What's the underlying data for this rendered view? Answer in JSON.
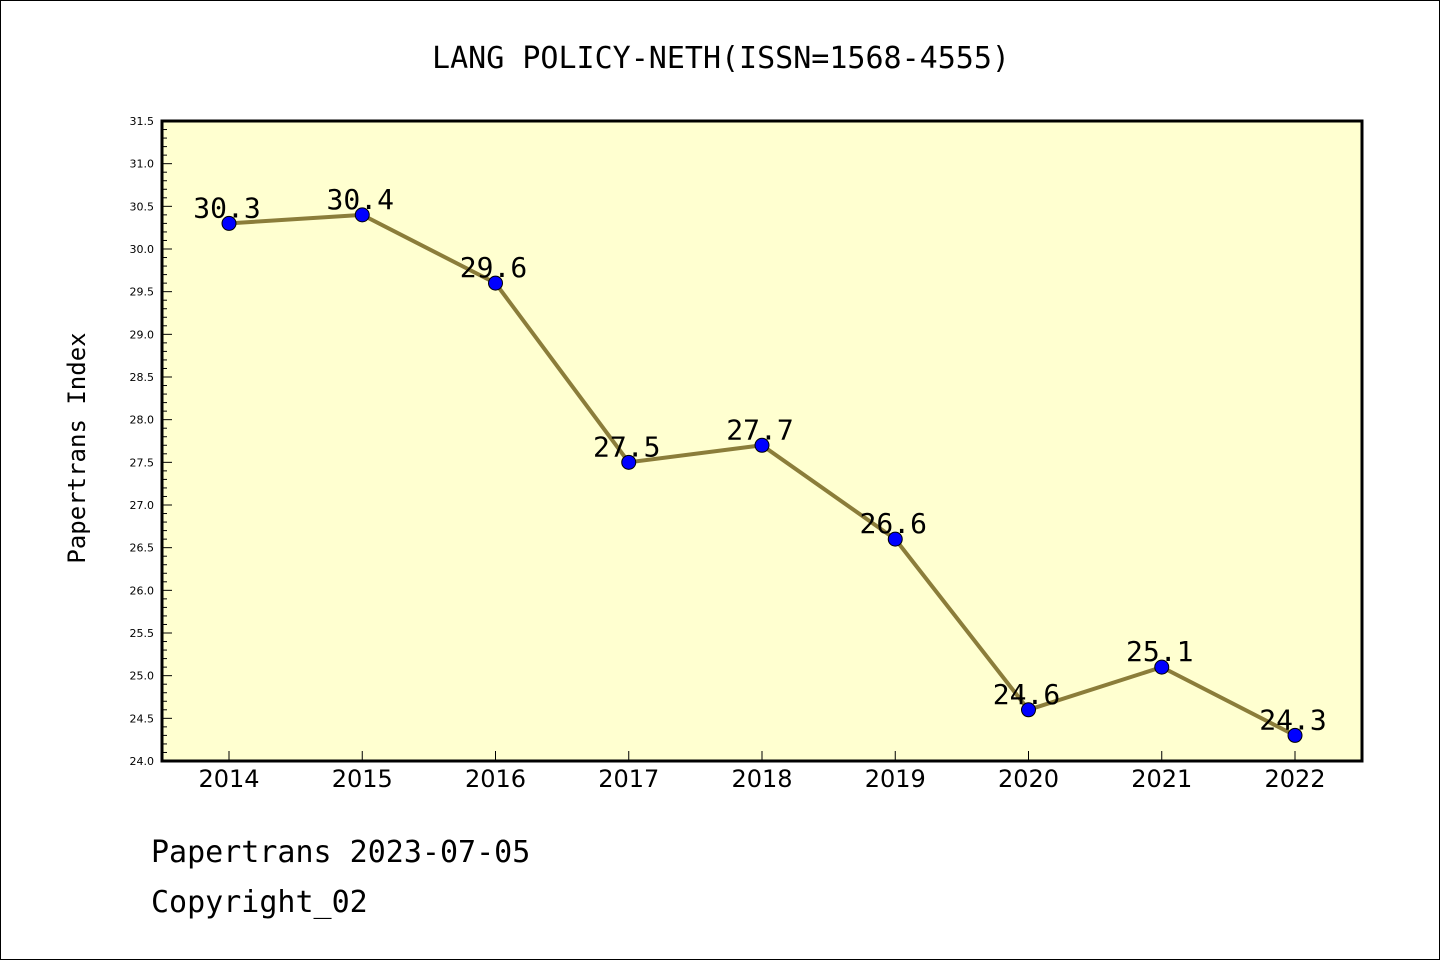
{
  "chart_data": {
    "type": "line",
    "title": "LANG POLICY-NETH(ISSN=1568-4555)",
    "xlabel": "",
    "ylabel": "Papertrans Index",
    "x": [
      "2014",
      "2015",
      "2016",
      "2017",
      "2018",
      "2019",
      "2020",
      "2021",
      "2022"
    ],
    "series": [
      {
        "values": [
          30.3,
          30.4,
          29.6,
          27.5,
          27.7,
          26.6,
          24.6,
          25.1,
          24.3
        ],
        "labels": [
          "30.3",
          "30.4",
          "29.6",
          "27.5",
          "27.7",
          "26.6",
          "24.6",
          "25.1",
          "24.3"
        ]
      }
    ],
    "ylim": [
      24.0,
      31.5
    ],
    "yticks": [
      "24.0",
      "24.5",
      "25.0",
      "25.5",
      "26.0",
      "26.5",
      "27.0",
      "27.5",
      "28.0",
      "28.5",
      "29.0",
      "29.5",
      "30.0",
      "30.5",
      "31.0",
      "31.5"
    ],
    "grid": false,
    "legend": "none",
    "colors": {
      "plot_background": "#ffffd0",
      "line": "#8b7d3a",
      "marker": "#0000ff"
    }
  },
  "footer": {
    "date_text": "Papertrans 2023-07-05",
    "copyright_text": "Copyright_02"
  }
}
